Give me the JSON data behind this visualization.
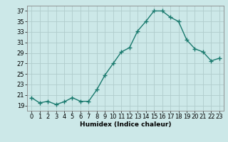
{
  "x": [
    0,
    1,
    2,
    3,
    4,
    5,
    6,
    7,
    8,
    9,
    10,
    11,
    12,
    13,
    14,
    15,
    16,
    17,
    18,
    19,
    20,
    21,
    22,
    23
  ],
  "y": [
    20.5,
    19.5,
    19.8,
    19.2,
    19.7,
    20.5,
    19.8,
    19.8,
    22.0,
    24.8,
    27.0,
    29.2,
    30.0,
    33.2,
    35.0,
    37.0,
    37.0,
    35.8,
    35.0,
    31.5,
    29.8,
    29.2,
    27.5,
    28.0
  ],
  "line_color": "#1a7a6e",
  "marker": "+",
  "marker_size": 4,
  "linewidth": 1.0,
  "bg_color": "#cce8e8",
  "grid_color": "#b0cccc",
  "xlabel": "Humidex (Indice chaleur)",
  "ylim": [
    18,
    38
  ],
  "xlim": [
    -0.5,
    23.5
  ],
  "yticks": [
    19,
    21,
    23,
    25,
    27,
    29,
    31,
    33,
    35,
    37
  ],
  "xticks": [
    0,
    1,
    2,
    3,
    4,
    5,
    6,
    7,
    8,
    9,
    10,
    11,
    12,
    13,
    14,
    15,
    16,
    17,
    18,
    19,
    20,
    21,
    22,
    23
  ],
  "xtick_labels": [
    "0",
    "1",
    "2",
    "3",
    "4",
    "5",
    "6",
    "7",
    "8",
    "9",
    "10",
    "11",
    "12",
    "13",
    "14",
    "15",
    "16",
    "17",
    "18",
    "19",
    "20",
    "21",
    "22",
    "23"
  ],
  "ytick_labels": [
    "19",
    "21",
    "23",
    "25",
    "27",
    "29",
    "31",
    "33",
    "35",
    "37"
  ],
  "label_fontsize": 6.5,
  "tick_fontsize": 6.0
}
